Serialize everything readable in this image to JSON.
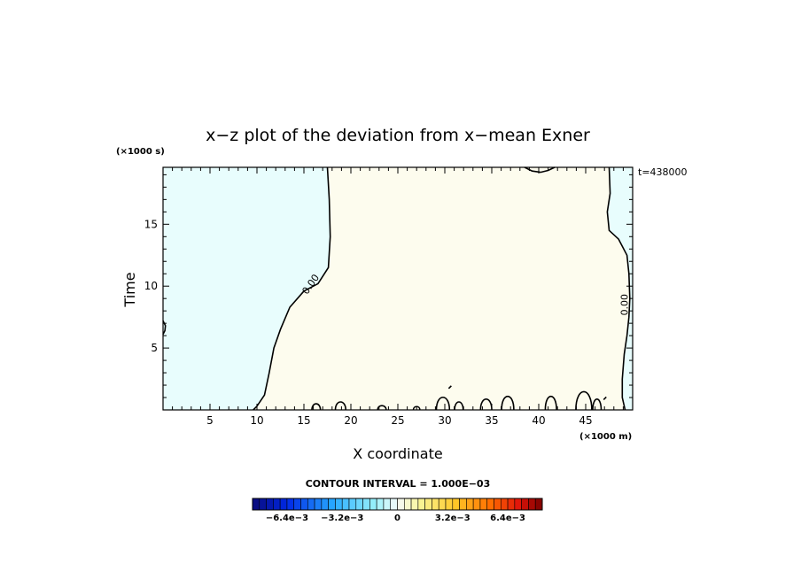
{
  "chart_data": {
    "type": "contour",
    "title": "x−z plot of the deviation from x−mean Exner",
    "xlabel": "X coordinate",
    "ylabel": "Time",
    "x_unit": "(×1000 m)",
    "y_unit": "(×1000 s)",
    "time_label": "t=438000",
    "xlim": [
      0,
      50
    ],
    "ylim": [
      0,
      19.6
    ],
    "x_ticks": [
      5,
      10,
      15,
      20,
      25,
      30,
      35,
      40,
      45
    ],
    "y_ticks": [
      5,
      10,
      15
    ],
    "contour_interval_text": "CONTOUR INTERVAL = 1.000E−03",
    "contour_label": "0.00",
    "contour_label_position": [
      16,
      10
    ],
    "contour_label_position_right": [
      49.5,
      8.5
    ],
    "colors": {
      "negative_fill": "#e8fdfd",
      "positive_fill": "#fdfcee",
      "contour_line": "#000000"
    },
    "zero_contour_left_boundary": [
      [
        17.5,
        19.6
      ],
      [
        17.7,
        17
      ],
      [
        17.8,
        14
      ],
      [
        17.6,
        11.5
      ],
      [
        16.5,
        10.2
      ],
      [
        15,
        9.6
      ],
      [
        13.5,
        8.3
      ],
      [
        12.5,
        6.5
      ],
      [
        11.8,
        5
      ],
      [
        11.3,
        3
      ],
      [
        10.8,
        1.2
      ],
      [
        10,
        0.3
      ],
      [
        9.6,
        0
      ]
    ],
    "zero_contour_right_boundary": [
      [
        47.5,
        19.6
      ],
      [
        47.6,
        17.5
      ],
      [
        47.3,
        16
      ],
      [
        47.5,
        14.5
      ],
      [
        48.5,
        13.8
      ],
      [
        49.4,
        12.5
      ],
      [
        49.6,
        11
      ],
      [
        49.7,
        9
      ],
      [
        49.6,
        7.5
      ],
      [
        49.4,
        6
      ],
      [
        49.1,
        4.5
      ],
      [
        48.9,
        2.5
      ],
      [
        48.9,
        1
      ],
      [
        49.2,
        0
      ]
    ],
    "top_cap": [
      [
        38.5,
        19.6
      ],
      [
        39.3,
        19.3
      ],
      [
        40.2,
        19.2
      ],
      [
        41,
        19.35
      ],
      [
        41.7,
        19.6
      ]
    ],
    "left_edge_blob": [
      [
        0,
        7.2
      ],
      [
        0.25,
        6.8
      ],
      [
        0.2,
        6.4
      ],
      [
        0,
        6.1
      ]
    ],
    "bottom_blobs": [
      {
        "cx": 16.3,
        "w": 0.9,
        "h": 0.8
      },
      {
        "cx": 18.9,
        "w": 1.1,
        "h": 1.0
      },
      {
        "cx": 23.3,
        "w": 0.9,
        "h": 0.6
      },
      {
        "cx": 27.0,
        "w": 0.7,
        "h": 0.5
      },
      {
        "cx": 29.8,
        "w": 1.4,
        "h": 1.5
      },
      {
        "cx": 31.5,
        "w": 0.9,
        "h": 1.0
      },
      {
        "cx": 34.4,
        "w": 1.2,
        "h": 1.3
      },
      {
        "cx": 36.7,
        "w": 1.3,
        "h": 1.6
      },
      {
        "cx": 41.3,
        "w": 1.2,
        "h": 1.6
      },
      {
        "cx": 44.8,
        "w": 1.7,
        "h": 2.1
      },
      {
        "cx": 46.2,
        "w": 0.9,
        "h": 1.3
      }
    ],
    "small_marks": [
      {
        "x": 30.6,
        "y": 1.8
      },
      {
        "x": 47.1,
        "y": 0.9
      }
    ],
    "colorbar": {
      "min": -0.0084,
      "max": 0.0084,
      "n_levels": 42,
      "tick_labels": [
        "−6.4e−3",
        "−3.2e−3",
        "0",
        "3.2e−3",
        "6.4e−3"
      ],
      "tick_values": [
        -0.0064,
        -0.0032,
        0,
        0.0032,
        0.0064
      ]
    }
  }
}
